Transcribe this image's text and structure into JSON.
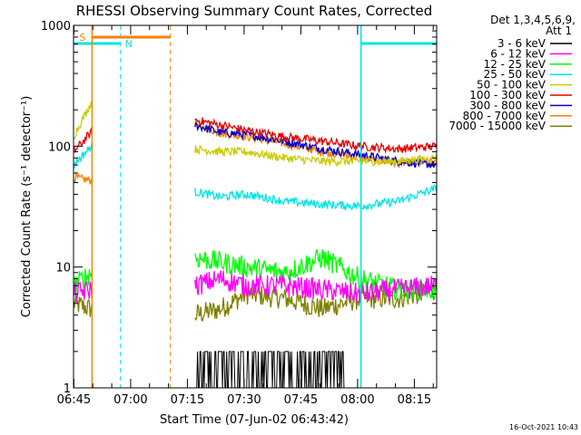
{
  "chart_data": {
    "type": "line",
    "title": "RHESSI Observing Summary Count Rates, Corrected",
    "xlabel": "Start Time (07-Jun-02 06:43:42)",
    "ylabel": "Corrected Count Rate (s⁻¹ detector⁻¹)",
    "y_scale": "log",
    "ylim": [
      1,
      1000
    ],
    "xlim_minutes": [
      6.2,
      102.2
    ],
    "x_ticks": [
      {
        "minute": 6.3,
        "label": "06:45"
      },
      {
        "minute": 21.3,
        "label": "07:00"
      },
      {
        "minute": 36.3,
        "label": "07:15"
      },
      {
        "minute": 51.3,
        "label": "07:30"
      },
      {
        "minute": 66.3,
        "label": "07:45"
      },
      {
        "minute": 81.3,
        "label": "08:00"
      },
      {
        "minute": 96.3,
        "label": "08:15"
      }
    ],
    "y_tick_labels": [
      "1",
      "10",
      "100",
      "1000"
    ],
    "legend_header": [
      "Det 1,3,4,5,6,9,",
      "Att 1"
    ],
    "timestamp": "16-Oct-2021 10:43",
    "colors": {
      "night": "#00e5e5",
      "saa": "#ff7f00",
      "axes": "#000000"
    },
    "intervals": {
      "night": [
        {
          "label": "N",
          "start": 0.0,
          "end": 18.6
        },
        {
          "label": "",
          "start": 82.2,
          "end": 102.2
        }
      ],
      "saa": [
        {
          "label": "S",
          "start": 11.1,
          "end": 31.8
        }
      ]
    },
    "data_gaps": [
      [
        11.1,
        38.1
      ]
    ],
    "series": [
      {
        "name": "3 - 6 keV",
        "color": "#000000",
        "values": [
          1.0,
          1.0,
          1.0,
          2.0,
          2.0,
          2.0,
          1.0,
          1.0,
          1.0,
          1.0
        ]
      },
      {
        "name": "6 - 12 keV",
        "color": "#ff00ff",
        "values": [
          6.0,
          6.5,
          7.0,
          8.0,
          7.0,
          7.0,
          6.5,
          6.0,
          6.5,
          7.0
        ]
      },
      {
        "name": "12 - 25 keV",
        "color": "#00ff00",
        "values": [
          7.0,
          9.0,
          12.0,
          11.0,
          10.0,
          9.0,
          12.0,
          8.0,
          6.5,
          6.5
        ]
      },
      {
        "name": "25 - 50 keV",
        "color": "#00e5e5",
        "values": [
          70.0,
          100.0,
          42.0,
          38.0,
          40.0,
          35.0,
          33.0,
          32.0,
          35.0,
          45.0
        ]
      },
      {
        "name": "50 - 100 keV",
        "color": "#cccc00",
        "values": [
          120.0,
          230.0,
          95.0,
          90.0,
          90.0,
          80.0,
          75.0,
          75.0,
          75.0,
          80.0
        ]
      },
      {
        "name": "100 - 300 keV",
        "color": "#e60000",
        "values": [
          90.0,
          130.0,
          165.0,
          150.0,
          135.0,
          120.0,
          110.0,
          100.0,
          95.0,
          100.0
        ]
      },
      {
        "name": "300 - 800 keV",
        "color": "#0000cc",
        "values": [
          0,
          0,
          150.0,
          130.0,
          125.0,
          110.0,
          95.0,
          85.0,
          75.0,
          70.0
        ]
      },
      {
        "name": "800 - 7000 keV",
        "color": "#ff7f00",
        "values": [
          55.0,
          52.0,
          155.0,
          128.0,
          120.0,
          105.0,
          90.0,
          80.0,
          72.0,
          75.0
        ]
      },
      {
        "name": "7000 - 15000 keV",
        "color": "#808000",
        "values": [
          5.0,
          4.5,
          4.0,
          4.5,
          6.0,
          5.5,
          4.5,
          5.5,
          5.5,
          6.5
        ]
      }
    ],
    "sample_minutes": [
      6.2,
      10.9,
      38.2,
      45.0,
      52.0,
      62.0,
      72.0,
      82.0,
      92.0,
      102.2
    ]
  }
}
